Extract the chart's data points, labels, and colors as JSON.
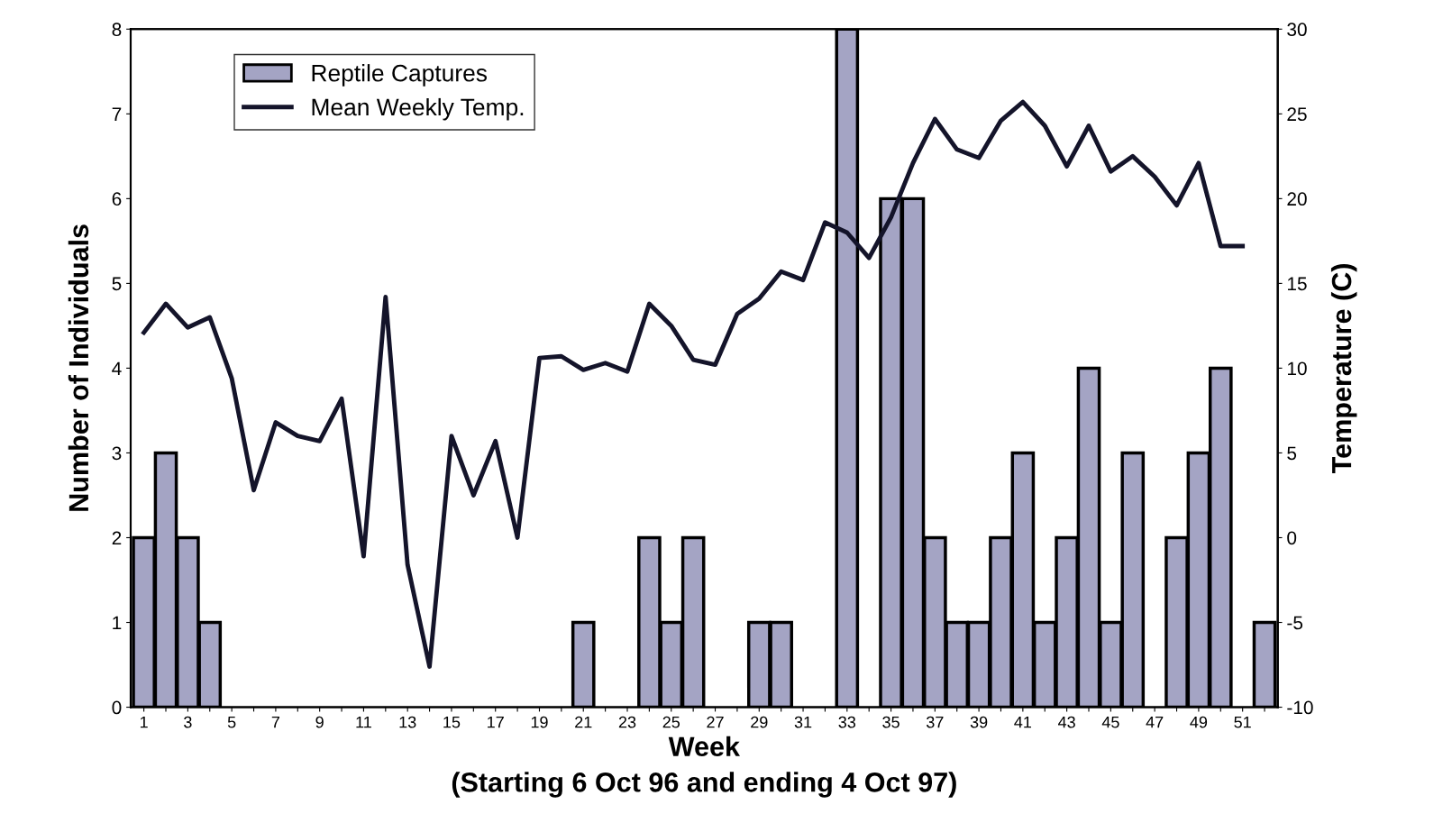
{
  "chart_data": {
    "type": "bar",
    "xlabel": "Week\n(Starting 6 Oct 96 and ending 4 Oct 97)",
    "ylabel": "Number of Individuals",
    "y2label": "Temperature (C)",
    "categories": [
      "1",
      null,
      "3",
      null,
      "5",
      null,
      "7",
      null,
      "9",
      null,
      "11",
      null,
      "13",
      null,
      "15",
      null,
      "17",
      null,
      "19",
      null,
      "21",
      null,
      "23",
      null,
      "25",
      null,
      "27",
      null,
      "29",
      null,
      "31",
      null,
      "33",
      null,
      "35",
      null,
      "37",
      null,
      "39",
      null,
      "41",
      null,
      "43",
      null,
      "45",
      null,
      "47",
      null,
      "49",
      null,
      "51",
      null
    ],
    "series": [
      {
        "name": "Reptile Captures",
        "color": "#a4a4c4",
        "values": [
          2,
          3,
          2,
          1,
          0,
          0,
          0,
          0,
          0,
          0,
          0,
          0,
          0,
          0,
          0,
          0,
          0,
          0,
          0,
          0,
          1,
          0,
          0,
          2,
          1,
          2,
          0,
          0,
          1,
          1,
          0,
          0,
          8,
          0,
          6,
          6,
          2,
          1,
          1,
          2,
          3,
          1,
          2,
          4,
          1,
          3,
          0,
          2,
          3,
          4,
          0,
          1
        ]
      },
      {
        "name": "Mean Weekly Temp.",
        "type": "line",
        "axis": "y2",
        "color": "#14142a",
        "values": [
          12.1,
          13.8,
          12.4,
          13.0,
          9.4,
          2.8,
          6.8,
          6.0,
          5.7,
          8.2,
          -1.1,
          14.2,
          -1.6,
          -7.6,
          6.0,
          2.5,
          5.7,
          0.0,
          10.6,
          10.7,
          9.9,
          10.3,
          9.8,
          13.8,
          12.5,
          10.5,
          10.2,
          13.2,
          14.1,
          15.7,
          15.2,
          18.6,
          18.0,
          16.5,
          18.9,
          22.1,
          24.7,
          22.9,
          22.4,
          24.6,
          25.7,
          24.3,
          21.9,
          24.3,
          21.6,
          22.5,
          21.3,
          19.6,
          22.1,
          17.2,
          17.2,
          null
        ]
      }
    ],
    "ylim": [
      0,
      8
    ],
    "yticks": [
      0,
      1,
      2,
      3,
      4,
      5,
      6,
      7,
      8
    ],
    "y2lim": [
      -10,
      30
    ],
    "y2ticks": [
      -10,
      -5,
      0,
      5,
      10,
      15,
      20,
      25,
      30
    ],
    "legend": "top left",
    "grid": false,
    "marker": "none",
    "line_style": "solid"
  }
}
